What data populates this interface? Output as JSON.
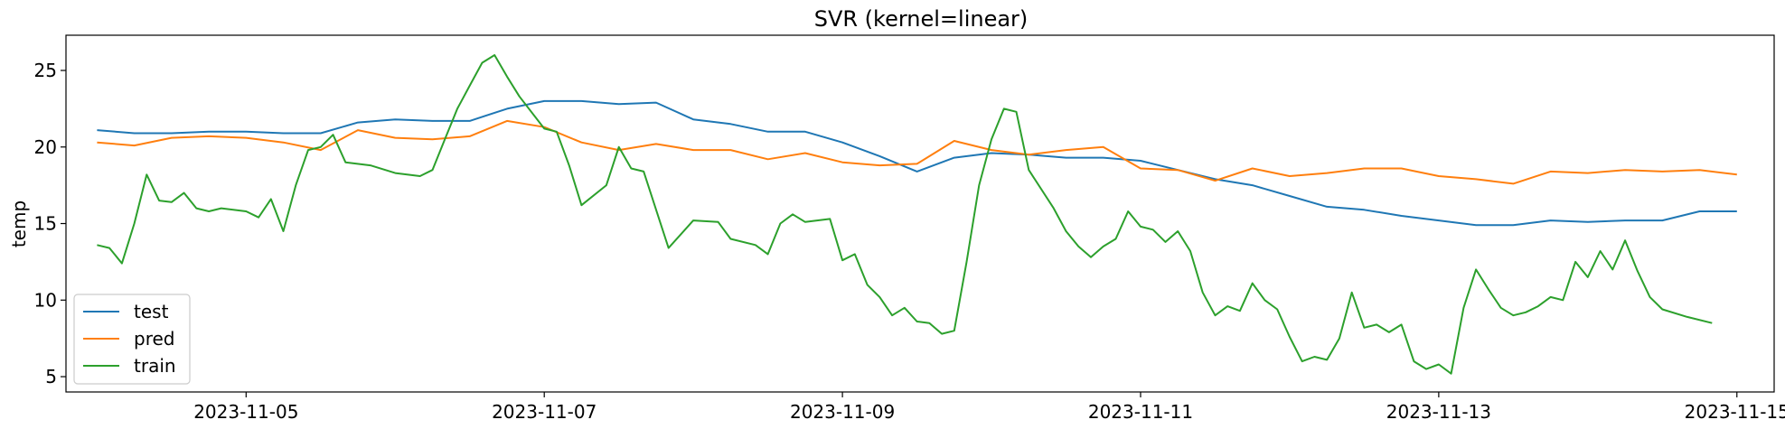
{
  "chart_data": {
    "type": "line",
    "title": "SVR (kernel=linear)",
    "xlabel": "",
    "ylabel": "temp",
    "x_range": [
      "2023-11-04T00:30",
      "2023-11-15T12:00"
    ],
    "xlim": [
      "2023-11-03T19:00",
      "2023-11-15T06:00"
    ],
    "ylim": [
      4.0,
      27.3
    ],
    "x_ticks": [
      "2023-11-05",
      "2023-11-07",
      "2023-11-09",
      "2023-11-11",
      "2023-11-13",
      "2023-11-15"
    ],
    "y_ticks": [
      5,
      10,
      15,
      20,
      25
    ],
    "grid": false,
    "legend_position": "lower-left",
    "series": [
      {
        "name": "test",
        "color": "#1f77b4",
        "points": [
          [
            "2023-11-04T00:00",
            21.1
          ],
          [
            "2023-11-04T06:00",
            20.9
          ],
          [
            "2023-11-04T12:00",
            20.9
          ],
          [
            "2023-11-04T18:00",
            21.0
          ],
          [
            "2023-11-05T00:00",
            21.0
          ],
          [
            "2023-11-05T06:00",
            20.9
          ],
          [
            "2023-11-05T12:00",
            20.9
          ],
          [
            "2023-11-05T18:00",
            21.6
          ],
          [
            "2023-11-06T00:00",
            21.8
          ],
          [
            "2023-11-06T06:00",
            21.7
          ],
          [
            "2023-11-06T12:00",
            21.7
          ],
          [
            "2023-11-06T18:00",
            22.5
          ],
          [
            "2023-11-07T00:00",
            23.0
          ],
          [
            "2023-11-07T06:00",
            23.0
          ],
          [
            "2023-11-07T12:00",
            22.8
          ],
          [
            "2023-11-07T18:00",
            22.9
          ],
          [
            "2023-11-08T00:00",
            21.8
          ],
          [
            "2023-11-08T06:00",
            21.5
          ],
          [
            "2023-11-08T12:00",
            21.0
          ],
          [
            "2023-11-08T18:00",
            21.0
          ],
          [
            "2023-11-09T00:00",
            20.3
          ],
          [
            "2023-11-09T06:00",
            19.4
          ],
          [
            "2023-11-09T12:00",
            18.4
          ],
          [
            "2023-11-09T18:00",
            19.3
          ],
          [
            "2023-11-10T00:00",
            19.6
          ],
          [
            "2023-11-10T06:00",
            19.5
          ],
          [
            "2023-11-10T12:00",
            19.3
          ],
          [
            "2023-11-10T18:00",
            19.3
          ],
          [
            "2023-11-11T00:00",
            19.1
          ],
          [
            "2023-11-11T06:00",
            18.5
          ],
          [
            "2023-11-11T12:00",
            17.9
          ],
          [
            "2023-11-11T18:00",
            17.5
          ],
          [
            "2023-11-12T00:00",
            16.8
          ],
          [
            "2023-11-12T06:00",
            16.1
          ],
          [
            "2023-11-12T12:00",
            15.9
          ],
          [
            "2023-11-12T18:00",
            15.5
          ],
          [
            "2023-11-13T00:00",
            15.2
          ],
          [
            "2023-11-13T06:00",
            14.9
          ],
          [
            "2023-11-13T12:00",
            14.9
          ],
          [
            "2023-11-13T18:00",
            15.2
          ],
          [
            "2023-11-14T00:00",
            15.1
          ],
          [
            "2023-11-14T06:00",
            15.2
          ],
          [
            "2023-11-14T12:00",
            15.2
          ],
          [
            "2023-11-14T18:00",
            15.8
          ],
          [
            "2023-11-15T00:00",
            15.8
          ]
        ]
      },
      {
        "name": "pred",
        "color": "#ff7f0e",
        "points": [
          [
            "2023-11-04T00:00",
            20.3
          ],
          [
            "2023-11-04T06:00",
            20.1
          ],
          [
            "2023-11-04T12:00",
            20.6
          ],
          [
            "2023-11-04T18:00",
            20.7
          ],
          [
            "2023-11-05T00:00",
            20.6
          ],
          [
            "2023-11-05T06:00",
            20.3
          ],
          [
            "2023-11-05T12:00",
            19.8
          ],
          [
            "2023-11-05T18:00",
            21.1
          ],
          [
            "2023-11-06T00:00",
            20.6
          ],
          [
            "2023-11-06T06:00",
            20.5
          ],
          [
            "2023-11-06T12:00",
            20.7
          ],
          [
            "2023-11-06T18:00",
            21.7
          ],
          [
            "2023-11-07T00:00",
            21.3
          ],
          [
            "2023-11-07T06:00",
            20.3
          ],
          [
            "2023-11-07T12:00",
            19.8
          ],
          [
            "2023-11-07T18:00",
            20.2
          ],
          [
            "2023-11-08T00:00",
            19.8
          ],
          [
            "2023-11-08T06:00",
            19.8
          ],
          [
            "2023-11-08T12:00",
            19.2
          ],
          [
            "2023-11-08T18:00",
            19.6
          ],
          [
            "2023-11-09T00:00",
            19.0
          ],
          [
            "2023-11-09T06:00",
            18.8
          ],
          [
            "2023-11-09T12:00",
            18.9
          ],
          [
            "2023-11-09T18:00",
            20.4
          ],
          [
            "2023-11-10T00:00",
            19.8
          ],
          [
            "2023-11-10T06:00",
            19.5
          ],
          [
            "2023-11-10T12:00",
            19.8
          ],
          [
            "2023-11-10T18:00",
            20.0
          ],
          [
            "2023-11-11T00:00",
            18.6
          ],
          [
            "2023-11-11T06:00",
            18.5
          ],
          [
            "2023-11-11T12:00",
            17.8
          ],
          [
            "2023-11-11T18:00",
            18.6
          ],
          [
            "2023-11-12T00:00",
            18.1
          ],
          [
            "2023-11-12T06:00",
            18.3
          ],
          [
            "2023-11-12T12:00",
            18.6
          ],
          [
            "2023-11-12T18:00",
            18.6
          ],
          [
            "2023-11-13T00:00",
            18.1
          ],
          [
            "2023-11-13T06:00",
            17.9
          ],
          [
            "2023-11-13T12:00",
            17.6
          ],
          [
            "2023-11-13T18:00",
            18.4
          ],
          [
            "2023-11-14T00:00",
            18.3
          ],
          [
            "2023-11-14T06:00",
            18.5
          ],
          [
            "2023-11-14T12:00",
            18.4
          ],
          [
            "2023-11-14T18:00",
            18.5
          ],
          [
            "2023-11-15T00:00",
            18.2
          ]
        ]
      },
      {
        "name": "train",
        "color": "#2ca02c",
        "points": [
          [
            "2023-11-04T00:00",
            13.6
          ],
          [
            "2023-11-04T02:00",
            13.4
          ],
          [
            "2023-11-04T04:00",
            12.4
          ],
          [
            "2023-11-04T06:00",
            15.0
          ],
          [
            "2023-11-04T08:00",
            18.2
          ],
          [
            "2023-11-04T10:00",
            16.5
          ],
          [
            "2023-11-04T12:00",
            16.4
          ],
          [
            "2023-11-04T14:00",
            17.0
          ],
          [
            "2023-11-04T16:00",
            16.0
          ],
          [
            "2023-11-04T18:00",
            15.8
          ],
          [
            "2023-11-04T20:00",
            16.0
          ],
          [
            "2023-11-05T00:00",
            15.8
          ],
          [
            "2023-11-05T02:00",
            15.4
          ],
          [
            "2023-11-05T04:00",
            16.6
          ],
          [
            "2023-11-05T06:00",
            14.5
          ],
          [
            "2023-11-05T08:00",
            17.5
          ],
          [
            "2023-11-05T10:00",
            19.8
          ],
          [
            "2023-11-05T12:00",
            20.0
          ],
          [
            "2023-11-05T14:00",
            20.8
          ],
          [
            "2023-11-05T16:00",
            19.0
          ],
          [
            "2023-11-05T20:00",
            18.8
          ],
          [
            "2023-11-06T00:00",
            18.3
          ],
          [
            "2023-11-06T04:00",
            18.1
          ],
          [
            "2023-11-06T06:00",
            18.5
          ],
          [
            "2023-11-06T08:00",
            20.5
          ],
          [
            "2023-11-06T10:00",
            22.5
          ],
          [
            "2023-11-06T12:00",
            24.0
          ],
          [
            "2023-11-06T14:00",
            25.5
          ],
          [
            "2023-11-06T16:00",
            26.0
          ],
          [
            "2023-11-06T18:00",
            24.6
          ],
          [
            "2023-11-06T20:00",
            23.3
          ],
          [
            "2023-11-07T00:00",
            21.2
          ],
          [
            "2023-11-07T02:00",
            21.0
          ],
          [
            "2023-11-07T04:00",
            18.8
          ],
          [
            "2023-11-07T06:00",
            16.2
          ],
          [
            "2023-11-07T10:00",
            17.5
          ],
          [
            "2023-11-07T12:00",
            20.0
          ],
          [
            "2023-11-07T14:00",
            18.6
          ],
          [
            "2023-11-07T16:00",
            18.4
          ],
          [
            "2023-11-07T20:00",
            13.4
          ],
          [
            "2023-11-08T00:00",
            15.2
          ],
          [
            "2023-11-08T04:00",
            15.1
          ],
          [
            "2023-11-08T06:00",
            14.0
          ],
          [
            "2023-11-08T10:00",
            13.6
          ],
          [
            "2023-11-08T12:00",
            13.0
          ],
          [
            "2023-11-08T14:00",
            15.0
          ],
          [
            "2023-11-08T16:00",
            15.6
          ],
          [
            "2023-11-08T18:00",
            15.1
          ],
          [
            "2023-11-08T22:00",
            15.3
          ],
          [
            "2023-11-09T00:00",
            12.6
          ],
          [
            "2023-11-09T02:00",
            13.0
          ],
          [
            "2023-11-09T04:00",
            11.0
          ],
          [
            "2023-11-09T06:00",
            10.2
          ],
          [
            "2023-11-09T08:00",
            9.0
          ],
          [
            "2023-11-09T10:00",
            9.5
          ],
          [
            "2023-11-09T12:00",
            8.6
          ],
          [
            "2023-11-09T14:00",
            8.5
          ],
          [
            "2023-11-09T16:00",
            7.8
          ],
          [
            "2023-11-09T18:00",
            8.0
          ],
          [
            "2023-11-09T20:00",
            12.5
          ],
          [
            "2023-11-09T22:00",
            17.5
          ],
          [
            "2023-11-10T00:00",
            20.5
          ],
          [
            "2023-11-10T02:00",
            22.5
          ],
          [
            "2023-11-10T04:00",
            22.3
          ],
          [
            "2023-11-10T06:00",
            18.5
          ],
          [
            "2023-11-10T10:00",
            16.0
          ],
          [
            "2023-11-10T12:00",
            14.5
          ],
          [
            "2023-11-10T14:00",
            13.5
          ],
          [
            "2023-11-10T16:00",
            12.8
          ],
          [
            "2023-11-10T18:00",
            13.5
          ],
          [
            "2023-11-10T20:00",
            14.0
          ],
          [
            "2023-11-10T22:00",
            15.8
          ],
          [
            "2023-11-11T00:00",
            14.8
          ],
          [
            "2023-11-11T02:00",
            14.6
          ],
          [
            "2023-11-11T04:00",
            13.8
          ],
          [
            "2023-11-11T06:00",
            14.5
          ],
          [
            "2023-11-11T08:00",
            13.2
          ],
          [
            "2023-11-11T10:00",
            10.5
          ],
          [
            "2023-11-11T12:00",
            9.0
          ],
          [
            "2023-11-11T14:00",
            9.6
          ],
          [
            "2023-11-11T16:00",
            9.3
          ],
          [
            "2023-11-11T18:00",
            11.1
          ],
          [
            "2023-11-11T20:00",
            10.0
          ],
          [
            "2023-11-11T22:00",
            9.4
          ],
          [
            "2023-11-12T00:00",
            7.6
          ],
          [
            "2023-11-12T02:00",
            6.0
          ],
          [
            "2023-11-12T04:00",
            6.3
          ],
          [
            "2023-11-12T06:00",
            6.1
          ],
          [
            "2023-11-12T08:00",
            7.5
          ],
          [
            "2023-11-12T10:00",
            10.5
          ],
          [
            "2023-11-12T12:00",
            8.2
          ],
          [
            "2023-11-12T14:00",
            8.4
          ],
          [
            "2023-11-12T16:00",
            7.9
          ],
          [
            "2023-11-12T18:00",
            8.4
          ],
          [
            "2023-11-12T20:00",
            6.0
          ],
          [
            "2023-11-12T22:00",
            5.5
          ],
          [
            "2023-11-13T00:00",
            5.8
          ],
          [
            "2023-11-13T02:00",
            5.2
          ],
          [
            "2023-11-13T04:00",
            9.5
          ],
          [
            "2023-11-13T06:00",
            12.0
          ],
          [
            "2023-11-13T08:00",
            10.7
          ],
          [
            "2023-11-13T10:00",
            9.5
          ],
          [
            "2023-11-13T12:00",
            9.0
          ],
          [
            "2023-11-13T14:00",
            9.2
          ],
          [
            "2023-11-13T16:00",
            9.6
          ],
          [
            "2023-11-13T18:00",
            10.2
          ],
          [
            "2023-11-13T20:00",
            10.0
          ],
          [
            "2023-11-13T22:00",
            12.5
          ],
          [
            "2023-11-14T00:00",
            11.5
          ],
          [
            "2023-11-14T02:00",
            13.2
          ],
          [
            "2023-11-14T04:00",
            12.0
          ],
          [
            "2023-11-14T06:00",
            13.9
          ],
          [
            "2023-11-14T08:00",
            11.9
          ],
          [
            "2023-11-14T10:00",
            10.2
          ],
          [
            "2023-11-14T12:00",
            9.4
          ],
          [
            "2023-11-14T16:00",
            8.9
          ],
          [
            "2023-11-14T20:00",
            8.5
          ]
        ]
      }
    ]
  }
}
